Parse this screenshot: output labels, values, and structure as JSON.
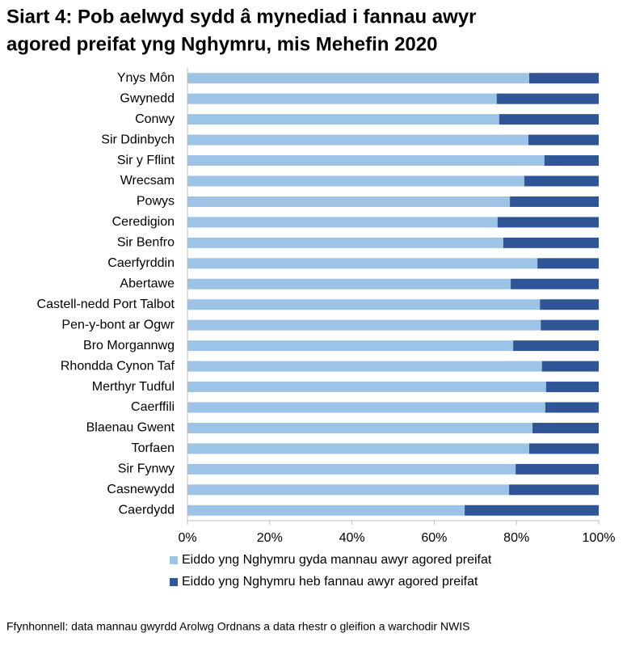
{
  "chart_data": {
    "type": "bar",
    "orientation": "horizontal",
    "stacked": true,
    "title": "Siart 4: Pob aelwyd sydd â mynediad i fannau awyr agored preifat yng Nghymru, mis Mehefin 2020",
    "title_lines": [
      "Siart 4: Pob aelwyd sydd â mynediad i fannau awyr",
      "agored preifat yng Nghymru, mis Mehefin 2020"
    ],
    "categories": [
      "Ynys Môn",
      "Gwynedd",
      "Conwy",
      "Sir Ddinbych",
      "Sir y Fflint",
      "Wrecsam",
      "Powys",
      "Ceredigion",
      "Sir Benfro",
      "Caerfyrddin",
      "Abertawe",
      "Castell-nedd Port Talbot",
      "Pen-y-bont ar Ogwr",
      "Bro Morgannwg",
      "Rhondda Cynon Taf",
      "Merthyr Tudful",
      "Caerffili",
      "Blaenau Gwent",
      "Torfaen",
      "Sir Fynwy",
      "Casnewydd",
      "Caerdydd"
    ],
    "series": [
      {
        "name": "Eiddo yng Nghymru gyda mannau awyr agored preifat",
        "color": "#9dc3e6",
        "values": [
          83.1,
          75.2,
          75.8,
          82.9,
          86.8,
          81.9,
          78.4,
          75.4,
          76.8,
          85.1,
          78.6,
          85.7,
          85.9,
          79.2,
          86.2,
          87.2,
          87.0,
          83.9,
          83.1,
          79.8,
          78.2,
          67.4
        ]
      },
      {
        "name": "Eiddo yng Nghymru heb fannau awyr agored preifat",
        "color": "#2f5597",
        "values": [
          16.9,
          24.8,
          24.2,
          17.1,
          13.2,
          18.1,
          21.6,
          24.6,
          23.2,
          14.9,
          21.4,
          14.3,
          14.1,
          20.8,
          13.8,
          12.8,
          13.0,
          16.1,
          16.9,
          20.2,
          21.8,
          32.6
        ]
      }
    ],
    "xlim": [
      0,
      100
    ],
    "xticks": [
      {
        "value": 0,
        "label": "0%"
      },
      {
        "value": 20,
        "label": "20%"
      },
      {
        "value": 40,
        "label": "40%"
      },
      {
        "value": 60,
        "label": "60%"
      },
      {
        "value": 80,
        "label": "80%"
      },
      {
        "value": 100,
        "label": "100%"
      }
    ],
    "legend_position": "bottom",
    "source": "Ffynhonnell: data mannau gwyrdd Arolwg Ordnans a data rhestr o gleifion a warchodir NWIS"
  }
}
